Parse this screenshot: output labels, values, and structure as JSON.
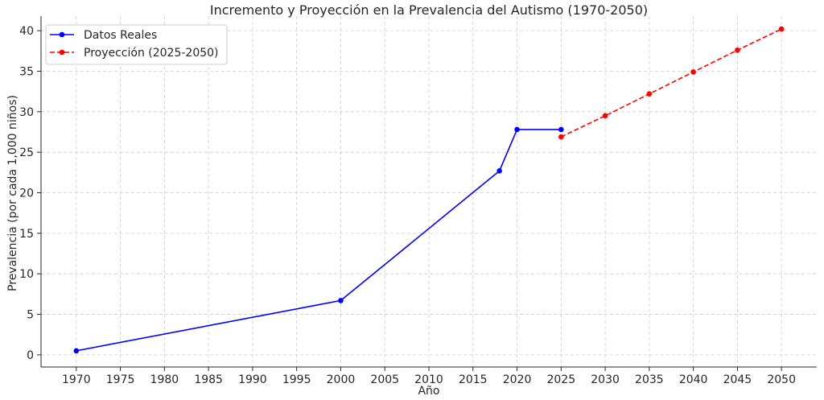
{
  "chart_data": {
    "type": "line",
    "title": "Incremento y Proyección en la Prevalencia del Autismo (1970-2050)",
    "xlabel": "Año",
    "ylabel": "Prevalencia (por cada 1,000 niños)",
    "xlim": [
      1966,
      2054
    ],
    "ylim": [
      -1.5,
      41.8
    ],
    "xticks": [
      1970,
      1975,
      1980,
      1985,
      1990,
      1995,
      2000,
      2005,
      2010,
      2015,
      2020,
      2025,
      2030,
      2035,
      2040,
      2045,
      2050
    ],
    "yticks": [
      0,
      5,
      10,
      15,
      20,
      25,
      30,
      35,
      40
    ],
    "grid": true,
    "legend_position": "top-left",
    "series": [
      {
        "name": "Datos Reales",
        "color": "#0000ff",
        "style": "solid",
        "marker": "circle",
        "x": [
          1970,
          2000,
          2018,
          2020,
          2025
        ],
        "y": [
          0.5,
          6.7,
          22.7,
          27.8,
          27.8
        ]
      },
      {
        "name": "Proyección (2025-2050)",
        "color": "#ff0000",
        "style": "dashed",
        "marker": "circle",
        "x": [
          2025,
          2030,
          2035,
          2040,
          2045,
          2050
        ],
        "y": [
          26.9,
          29.5,
          32.2,
          34.9,
          37.6,
          40.2
        ]
      }
    ]
  }
}
